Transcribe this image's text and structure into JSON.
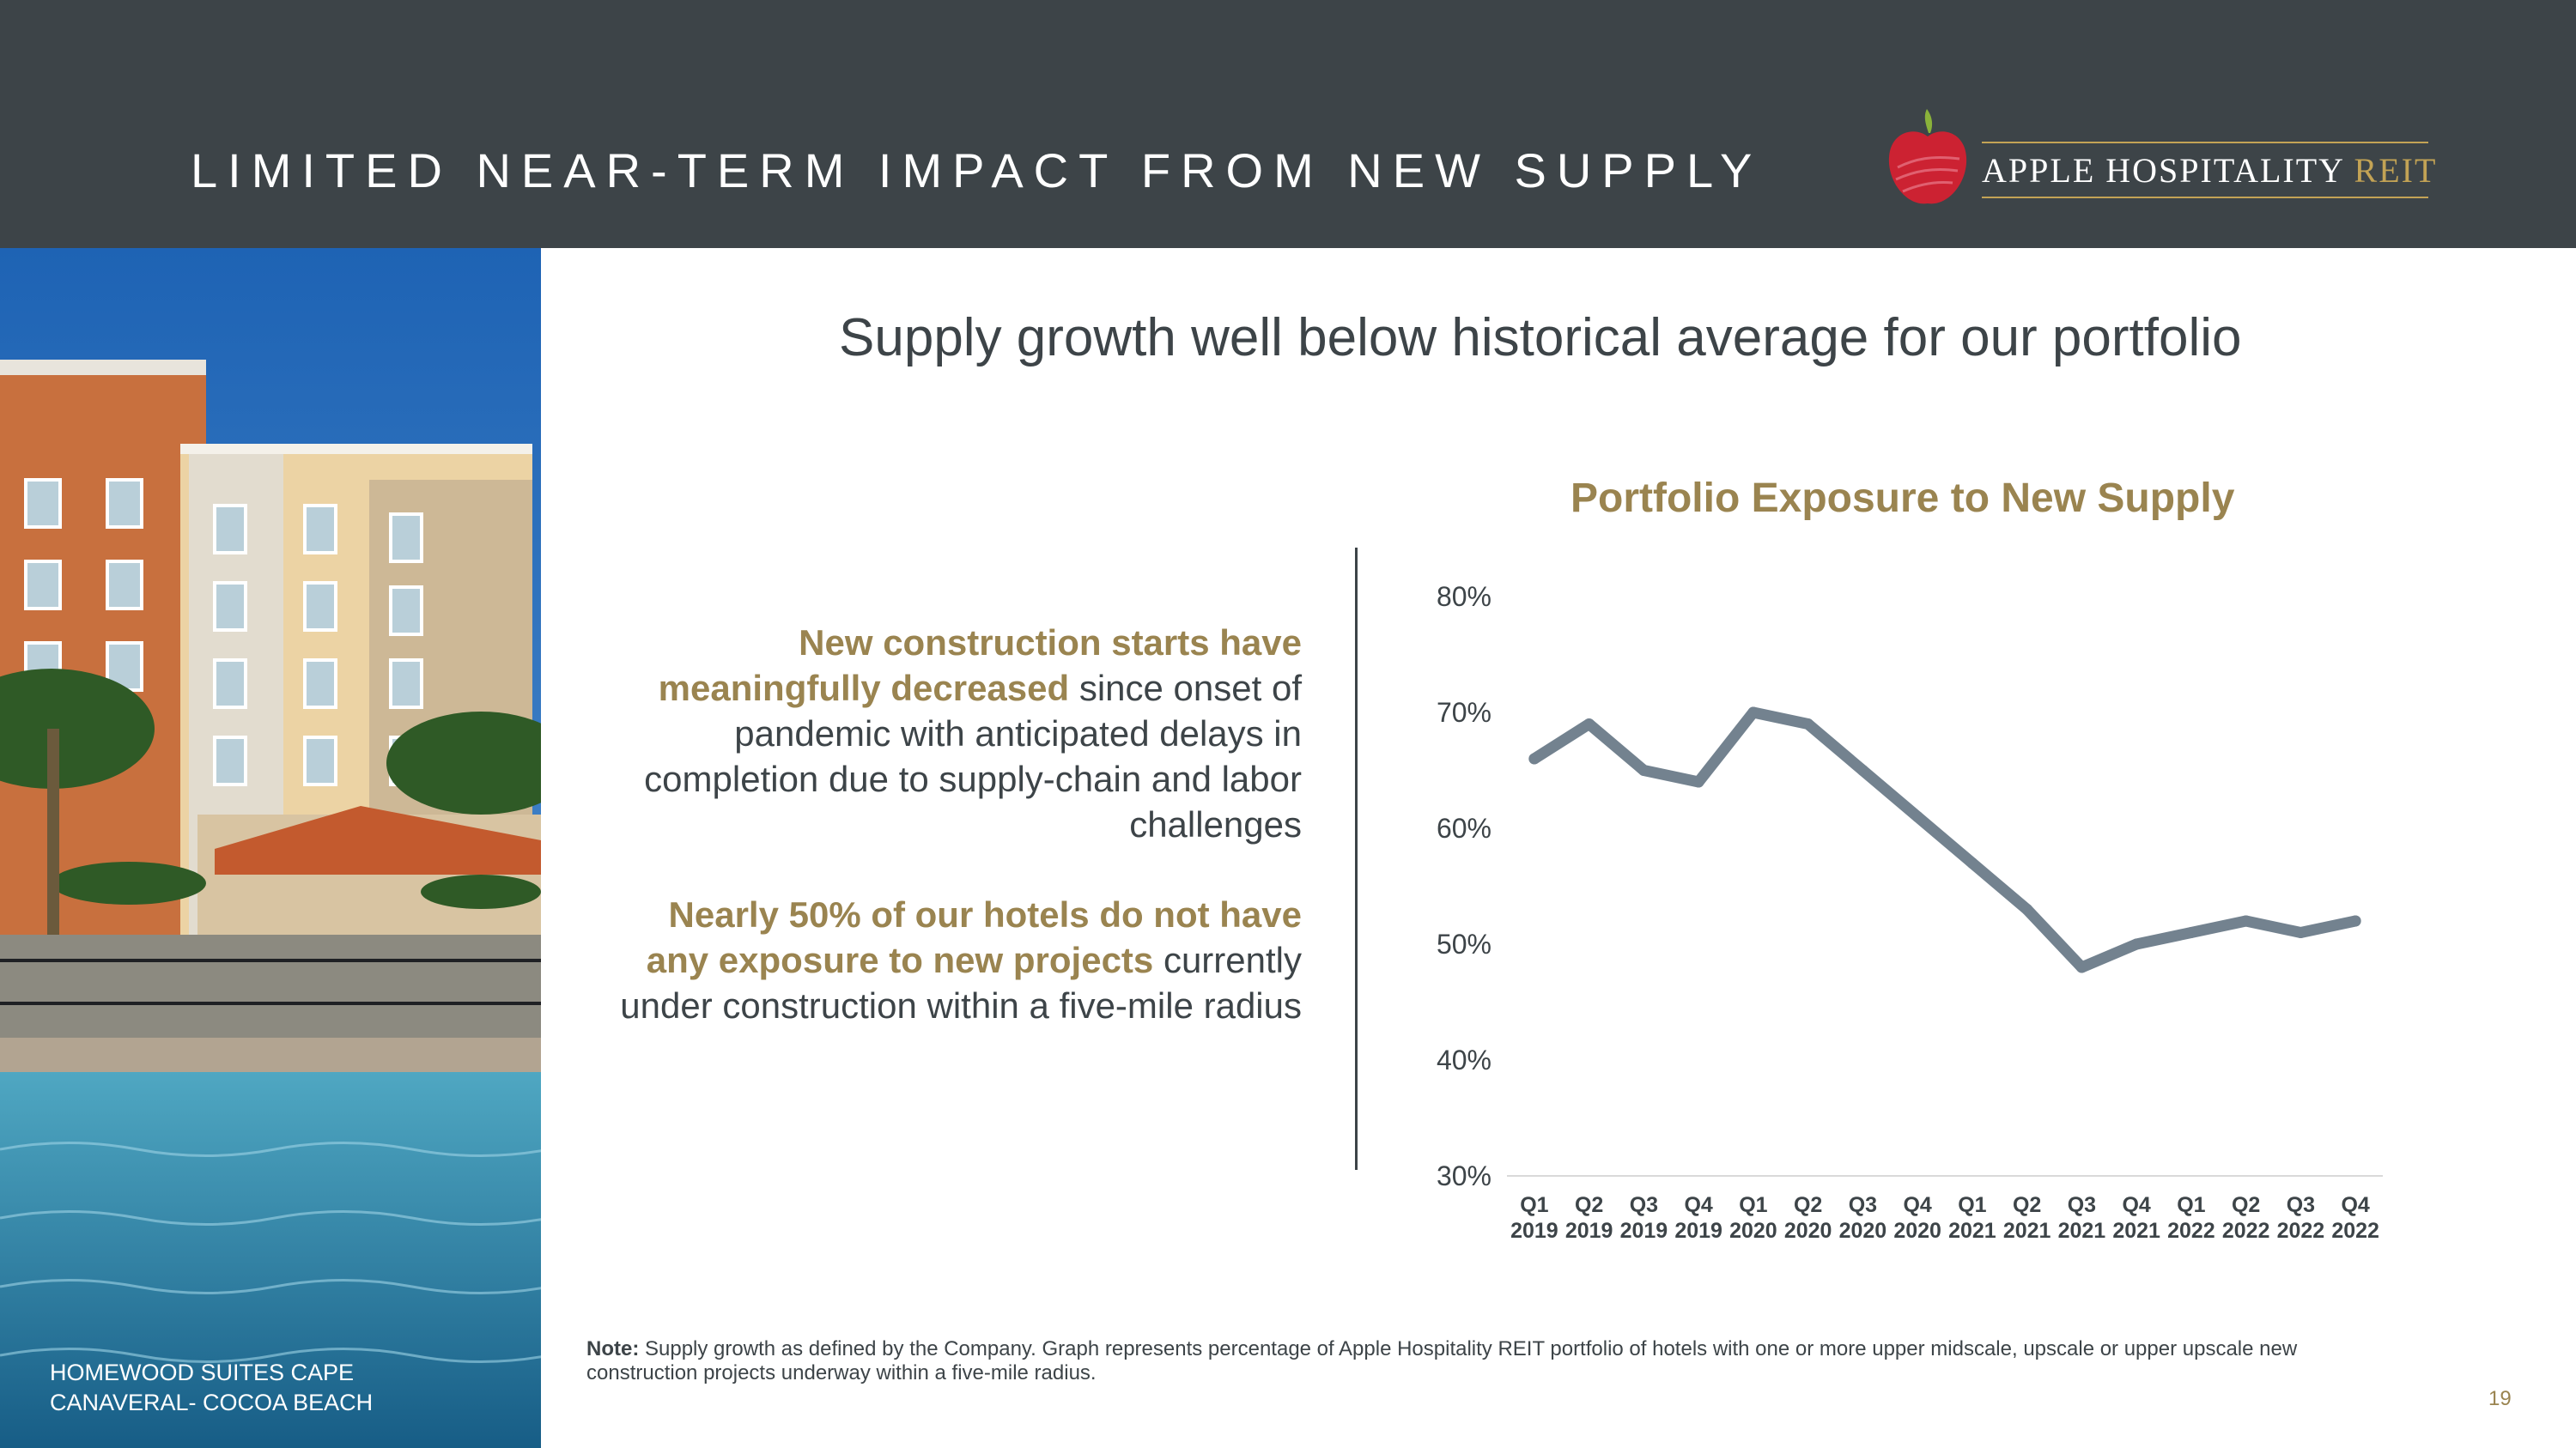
{
  "header": {
    "title": "LIMITED NEAR-TERM IMPACT FROM NEW SUPPLY",
    "logo_text": "APPLE HOSPITALITY",
    "logo_reit": "REIT"
  },
  "photo": {
    "caption_line1": "HOMEWOOD SUITES CAPE",
    "caption_line2": "CANAVERAL- COCOA BEACH"
  },
  "subtitle": "Supply growth well below historical average for our portfolio",
  "bullets": [
    {
      "highlight": "New construction starts have meaningfully decreased",
      "rest": " since onset of pandemic with anticipated delays in completion due to supply-chain and labor challenges"
    },
    {
      "highlight": "Nearly 50% of our hotels do not have any exposure to new projects",
      "rest": " currently under construction within a five-mile radius"
    }
  ],
  "colors": {
    "header": "#3d4448",
    "accent_gold": "#9a8450",
    "line": "#73828f"
  },
  "chart_data": {
    "type": "line",
    "title": "Portfolio Exposure to New Supply",
    "categories": [
      [
        "Q1",
        "2019"
      ],
      [
        "Q2",
        "2019"
      ],
      [
        "Q3",
        "2019"
      ],
      [
        "Q4",
        "2019"
      ],
      [
        "Q1",
        "2020"
      ],
      [
        "Q2",
        "2020"
      ],
      [
        "Q3",
        "2020"
      ],
      [
        "Q4",
        "2020"
      ],
      [
        "Q1",
        "2021"
      ],
      [
        "Q2",
        "2021"
      ],
      [
        "Q3",
        "2021"
      ],
      [
        "Q4",
        "2021"
      ],
      [
        "Q1",
        "2022"
      ],
      [
        "Q2",
        "2022"
      ],
      [
        "Q3",
        "2022"
      ],
      [
        "Q4",
        "2022"
      ]
    ],
    "series": [
      {
        "values": [
          66,
          69,
          65,
          64,
          70,
          69,
          65,
          61,
          57,
          53,
          48,
          50,
          51,
          52,
          51,
          52
        ]
      }
    ],
    "y_ticks": [
      "30%",
      "40%",
      "50%",
      "60%",
      "70%",
      "80%"
    ],
    "ylim": [
      30,
      80
    ],
    "grid": false,
    "xlabel": "",
    "ylabel": ""
  },
  "note_label": "Note:",
  "note_text": " Supply growth as defined by the Company. Graph represents percentage of Apple Hospitality REIT portfolio of hotels with one or more upper midscale, upscale or upper upscale new construction projects underway within a five-mile radius.",
  "page_number": "19"
}
